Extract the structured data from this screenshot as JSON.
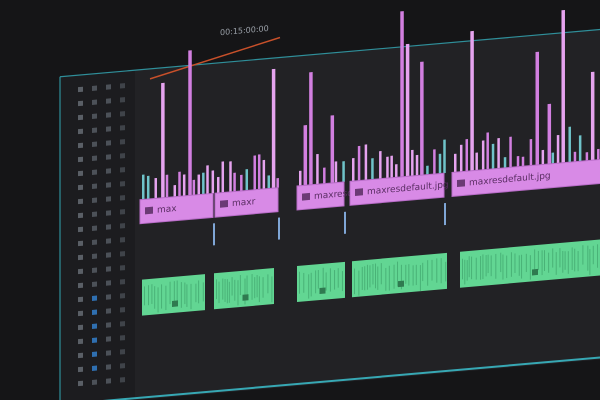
{
  "timeline": {
    "timecode": "00:15:00:00",
    "video_clips": [
      {
        "label": "max"
      },
      {
        "label": "maxr"
      },
      {
        "label": "maxresd"
      },
      {
        "label": "maxresdefault.jpg"
      },
      {
        "label": "maxresdefault.jpg"
      }
    ]
  }
}
